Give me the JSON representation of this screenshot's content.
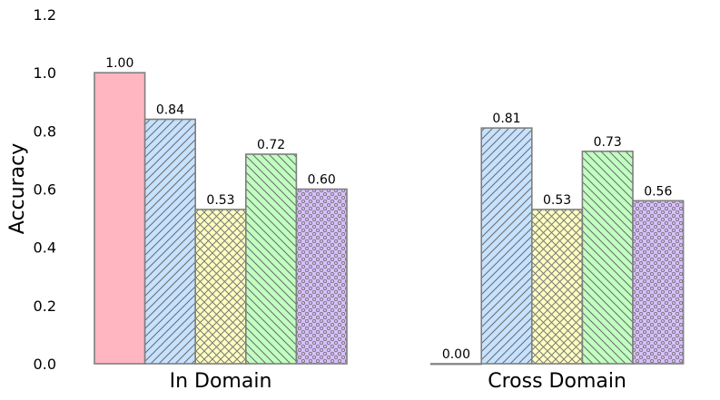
{
  "chart_data": {
    "type": "bar",
    "categories": [
      "In Domain",
      "Cross Domain"
    ],
    "ylabel": "Accuracy",
    "ylim": [
      0,
      1.2
    ],
    "yticks": [
      "0.0",
      "0.2",
      "0.4",
      "0.6",
      "0.8",
      "1.0",
      "1.2"
    ],
    "grid": false,
    "series": [
      {
        "values": [
          1.0,
          0.0
        ],
        "labels": [
          "1.00",
          "0.00"
        ],
        "color": "#ffb6c1",
        "pattern": "solid"
      },
      {
        "values": [
          0.84,
          0.81
        ],
        "labels": [
          "0.84",
          "0.81"
        ],
        "color": "#c6e2ff",
        "pattern": "diag-forward"
      },
      {
        "values": [
          0.53,
          0.53
        ],
        "labels": [
          "0.53",
          "0.53"
        ],
        "color": "#ffffc0",
        "pattern": "crosshatch"
      },
      {
        "values": [
          0.72,
          0.73
        ],
        "labels": [
          "0.72",
          "0.73"
        ],
        "color": "#c1ffc1",
        "pattern": "diag-back"
      },
      {
        "values": [
          0.6,
          0.56
        ],
        "labels": [
          "0.60",
          "0.56"
        ],
        "color": "#d8bfff",
        "pattern": "dots"
      }
    ],
    "edge_color": "#7f7f7f"
  }
}
